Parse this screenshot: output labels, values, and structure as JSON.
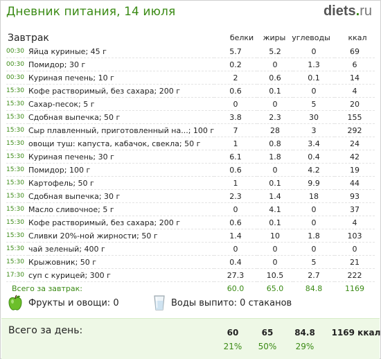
{
  "header": {
    "title": "Дневник питания, 14 июля",
    "logo": {
      "name": "diets",
      "dot": ".",
      "tld": "ru"
    }
  },
  "meal": {
    "title": "Завтрак",
    "columns": {
      "protein": "белки",
      "fat": "жиры",
      "carbs": "углеводы",
      "kcal": "ккал"
    },
    "items": [
      {
        "time": "00:30",
        "name": "Яйца куриные; 45 г",
        "protein": "5.7",
        "fat": "5.2",
        "carbs": "0",
        "kcal": "69"
      },
      {
        "time": "00:30",
        "name": "Помидор; 30 г",
        "protein": "0.2",
        "fat": "0",
        "carbs": "1.3",
        "kcal": "6"
      },
      {
        "time": "00:30",
        "name": "Куриная печень; 10 г",
        "protein": "2",
        "fat": "0.6",
        "carbs": "0.1",
        "kcal": "14"
      },
      {
        "time": "15:30",
        "name": "Кофе растворимый, без сахара; 200 г",
        "protein": "0.6",
        "fat": "0.1",
        "carbs": "0",
        "kcal": "4"
      },
      {
        "time": "15:30",
        "name": "Сахар-песок; 5 г",
        "protein": "0",
        "fat": "0",
        "carbs": "5",
        "kcal": "20"
      },
      {
        "time": "15:30",
        "name": "Сдобная выпечка; 50 г",
        "protein": "3.8",
        "fat": "2.3",
        "carbs": "30",
        "kcal": "155"
      },
      {
        "time": "15:30",
        "name": "Сыр плавленный, приготовленный на...; 100 г",
        "protein": "7",
        "fat": "28",
        "carbs": "3",
        "kcal": "292"
      },
      {
        "time": "15:30",
        "name": "овощи туш: капуста, кабачок, свекла; 50 г",
        "protein": "1",
        "fat": "0.8",
        "carbs": "3.4",
        "kcal": "24"
      },
      {
        "time": "15:30",
        "name": "Куриная печень; 30 г",
        "protein": "6.1",
        "fat": "1.8",
        "carbs": "0.4",
        "kcal": "42"
      },
      {
        "time": "15:30",
        "name": "Помидор; 100 г",
        "protein": "0.6",
        "fat": "0",
        "carbs": "4.2",
        "kcal": "19"
      },
      {
        "time": "15:30",
        "name": "Картофель; 50 г",
        "protein": "1",
        "fat": "0.1",
        "carbs": "9.9",
        "kcal": "44"
      },
      {
        "time": "15:30",
        "name": "Сдобная выпечка; 30 г",
        "protein": "2.3",
        "fat": "1.4",
        "carbs": "18",
        "kcal": "93"
      },
      {
        "time": "15:30",
        "name": "Масло сливочное; 5 г",
        "protein": "0",
        "fat": "4.1",
        "carbs": "0",
        "kcal": "37"
      },
      {
        "time": "15:30",
        "name": "Кофе растворимый, без сахара; 200 г",
        "protein": "0.6",
        "fat": "0.1",
        "carbs": "0",
        "kcal": "4"
      },
      {
        "time": "15:30",
        "name": "Сливки 20%-ной жирности; 50 г",
        "protein": "1.4",
        "fat": "10",
        "carbs": "1.8",
        "kcal": "103"
      },
      {
        "time": "15:30",
        "name": "чай зеленый; 400 г",
        "protein": "0",
        "fat": "0",
        "carbs": "0",
        "kcal": "0"
      },
      {
        "time": "15:30",
        "name": "Крыжовник; 50 г",
        "protein": "0.4",
        "fat": "0",
        "carbs": "5",
        "kcal": "21"
      },
      {
        "time": "17:30",
        "name": "суп с курицей; 300 г",
        "protein": "27.3",
        "fat": "10.5",
        "carbs": "2.7",
        "kcal": "222"
      }
    ],
    "total": {
      "label": "Всего за завтрак:",
      "protein": "60.0",
      "fat": "65.0",
      "carbs": "84.8",
      "kcal": "1169"
    }
  },
  "extras": {
    "fruits_label": "Фрукты и овощи: 0",
    "water_label": "Воды выпито: 0 стаканов",
    "icons": {
      "fruits": "green-apple-icon",
      "water": "water-glass-icon"
    }
  },
  "day_total": {
    "label": "Всего за день:",
    "protein": "60",
    "fat": "65",
    "carbs": "84.8",
    "kcal": "1169 ккал",
    "protein_pct": "21%",
    "fat_pct": "50%",
    "carbs_pct": "29%"
  },
  "colors": {
    "accent": "#3a8a14",
    "day_bg": "#eef8e6"
  }
}
